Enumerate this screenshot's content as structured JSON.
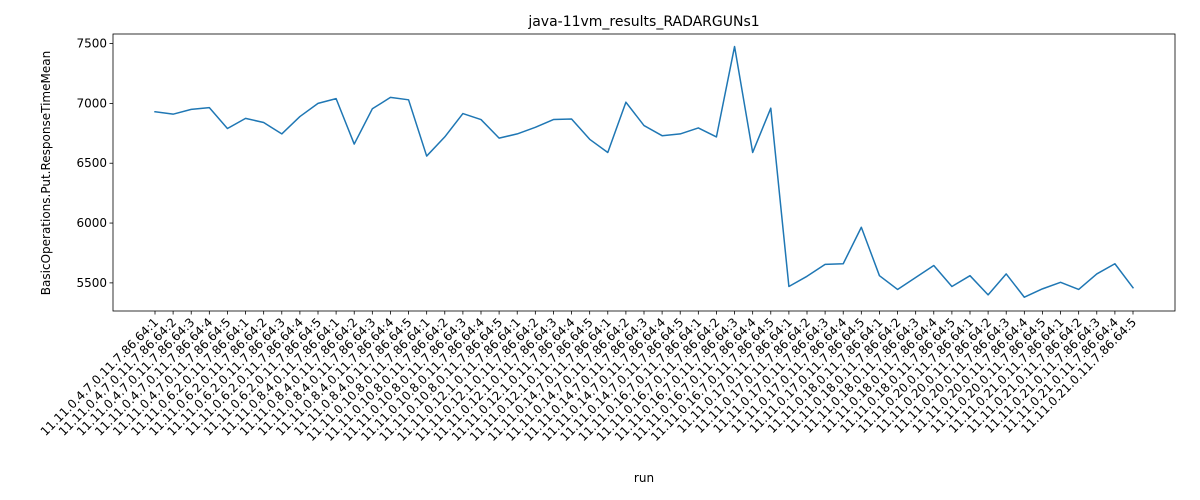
{
  "chart_data": {
    "type": "line",
    "title": "java-11vm_results_RADARGUNs1",
    "xlabel": "run",
    "ylabel": "BasicOperations.Put.ResponseTimeMean",
    "ylim": [
      5265,
      7580
    ],
    "yticks": [
      5500,
      6000,
      6500,
      7000,
      7500
    ],
    "grid": false,
    "categories": [
      "11.11.0.4.7.0.11.7.86.64:1",
      "11.11.0.4.7.0.11.7.86.64:2",
      "11.11.0.4.7.0.11.7.86.64:3",
      "11.11.0.4.7.0.11.7.86.64:4",
      "11.11.0.4.7.0.11.7.86.64:5",
      "11.11.0.6.2.0.11.7.86.64:1",
      "11.11.0.6.2.0.11.7.86.64:2",
      "11.11.0.6.2.0.11.7.86.64:3",
      "11.11.0.6.2.0.11.7.86.64:4",
      "11.11.0.6.2.0.11.7.86.64:5",
      "11.11.0.8.4.0.11.7.86.64:1",
      "11.11.0.8.4.0.11.7.86.64:2",
      "11.11.0.8.4.0.11.7.86.64:3",
      "11.11.0.8.4.0.11.7.86.64:4",
      "11.11.0.8.4.0.11.7.86.64:5",
      "11.11.0.10.8.0.11.7.86.64:1",
      "11.11.0.10.8.0.11.7.86.64:2",
      "11.11.0.10.8.0.11.7.86.64:3",
      "11.11.0.10.8.0.11.7.86.64:4",
      "11.11.0.10.8.0.11.7.86.64:5",
      "11.11.0.12.1.0.11.7.86.64:1",
      "11.11.0.12.1.0.11.7.86.64:2",
      "11.11.0.12.1.0.11.7.86.64:3",
      "11.11.0.12.1.0.11.7.86.64:4",
      "11.11.0.12.1.0.11.7.86.64:5",
      "11.11.0.14.7.0.11.7.86.64:1",
      "11.11.0.14.7.0.11.7.86.64:2",
      "11.11.0.14.7.0.11.7.86.64:3",
      "11.11.0.14.7.0.11.7.86.64:4",
      "11.11.0.14.7.0.11.7.86.64:5",
      "11.11.0.16.7.0.11.7.86.64:1",
      "11.11.0.16.7.0.11.7.86.64:2",
      "11.11.0.16.7.0.11.7.86.64:3",
      "11.11.0.16.7.0.11.7.86.64:4",
      "11.11.0.16.7.0.11.7.86.64:5",
      "11.11.0.17.0.11.7.86.64:1",
      "11.11.0.17.0.11.7.86.64:2",
      "11.11.0.17.0.11.7.86.64:3",
      "11.11.0.17.0.11.7.86.64:4",
      "11.11.0.17.0.11.7.86.64:5",
      "11.11.0.18.0.11.7.86.64:1",
      "11.11.0.18.0.11.7.86.64:2",
      "11.11.0.18.0.11.7.86.64:3",
      "11.11.0.18.0.11.7.86.64:4",
      "11.11.0.18.0.11.7.86.64:5",
      "11.11.0.20.0.11.7.86.64:1",
      "11.11.0.20.0.11.7.86.64:2",
      "11.11.0.20.0.11.7.86.64:3",
      "11.11.0.20.0.11.7.86.64:4",
      "11.11.0.20.0.11.7.86.64:5",
      "11.11.0.21.0.11.7.86.64:1",
      "11.11.0.21.0.11.7.86.64:2",
      "11.11.0.21.0.11.7.86.64:3",
      "11.11.0.21.0.11.7.86.64:4",
      "11.11.0.21.0.11.7.86.64:5"
    ],
    "series": [
      {
        "color": "#1f77b4",
        "values": [
          6930,
          6910,
          6950,
          6965,
          6790,
          6875,
          6840,
          6745,
          6890,
          7000,
          7040,
          6660,
          6955,
          7050,
          7030,
          6560,
          6720,
          6915,
          6865,
          6710,
          6745,
          6800,
          6865,
          6870,
          6700,
          6590,
          7010,
          6815,
          6730,
          6745,
          6795,
          6720,
          7475,
          6590,
          6960,
          5470,
          5555,
          5655,
          5660,
          5965,
          5560,
          5445,
          5545,
          5645,
          5470,
          5560,
          5400,
          5575,
          5380,
          5450,
          5505,
          5445,
          5575,
          5660,
          5460
        ]
      }
    ]
  }
}
